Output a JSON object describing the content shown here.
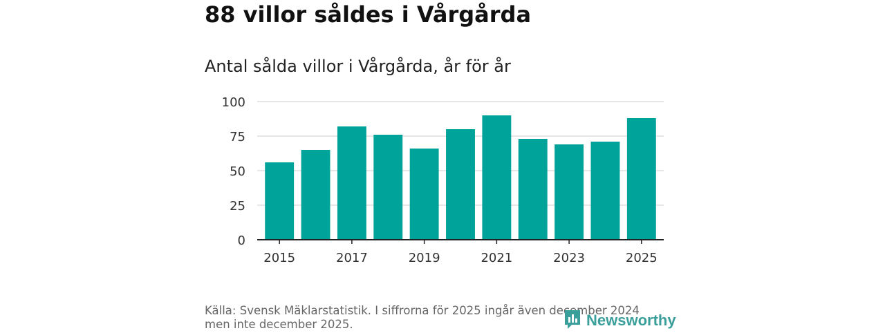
{
  "title": "88 villor såldes i Vårgårda",
  "subtitle": "Antal sålda villor i Vårgårda, år för år",
  "source": "Källa: Svensk Mäklarstatistik. I siffrorna för 2025 ingår även december 2024 men inte december 2025.",
  "brand": {
    "name": "Newsworthy",
    "icon": "newsworthy-logo-icon",
    "color": "#3a9e9a"
  },
  "colors": {
    "bar": "#00a39a",
    "grid": "#dddddd",
    "axis": "#222222"
  },
  "chart_data": {
    "type": "bar",
    "title": "Antal sålda villor i Vårgårda, år för år",
    "xlabel": "",
    "ylabel": "",
    "categories": [
      "2015",
      "2016",
      "2017",
      "2018",
      "2019",
      "2020",
      "2021",
      "2022",
      "2023",
      "2024",
      "2025"
    ],
    "values": [
      56,
      65,
      82,
      76,
      66,
      80,
      90,
      73,
      69,
      71,
      88
    ],
    "ylim": [
      0,
      100
    ],
    "yticks": [
      0,
      25,
      50,
      75,
      100
    ],
    "xtick_labels": [
      "2015",
      "2017",
      "2019",
      "2021",
      "2023",
      "2025"
    ],
    "grid": true,
    "legend": "none"
  }
}
